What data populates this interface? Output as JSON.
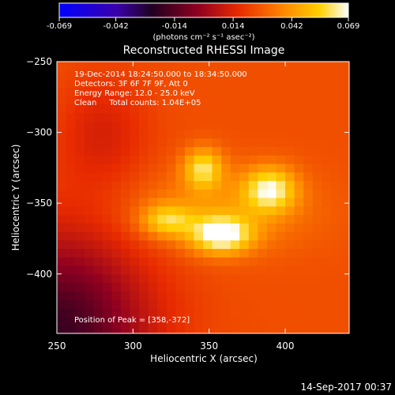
{
  "chart_data": {
    "type": "heatmap",
    "title": "Reconstructed RHESSI Image",
    "xlabel": "Heliocentric X (arcsec)",
    "ylabel": "Heliocentric Y (arcsec)",
    "xlim": [
      250,
      442
    ],
    "ylim": [
      -442,
      -250
    ],
    "x_ticks": [
      250,
      300,
      350,
      400
    ],
    "y_ticks": [
      -250,
      -300,
      -350,
      -400
    ],
    "colorbar": {
      "label": "(photons cm⁻² s⁻¹ asec⁻²)",
      "min": -0.069,
      "max": 0.069,
      "tick_labels": [
        "-0.069",
        "-0.042",
        "-0.014",
        "0.014",
        "0.042",
        "0.069"
      ],
      "ticks": [
        -0.069,
        -0.042,
        -0.014,
        0.014,
        0.042,
        0.069
      ]
    },
    "annotations": [
      "19-Dec-2014 18:24:50.000 to 18:34:50.000",
      "Detectors: 3F 6F 7F 9F, Att 0",
      "Energy Range: 12.0 - 25.0 keV",
      "Clean     Total counts: 1.04E+05"
    ],
    "peak_label": "Position of Peak = [358,-372]",
    "sources": [
      {
        "x": 358,
        "y": -372,
        "value": 0.069,
        "sx": 14,
        "sy": 9
      },
      {
        "x": 390,
        "y": -340,
        "value": 0.062,
        "sx": 12,
        "sy": 11
      },
      {
        "x": 346,
        "y": -325,
        "value": 0.058,
        "sx": 9,
        "sy": 10
      },
      {
        "x": 322,
        "y": -362,
        "value": 0.052,
        "sx": 12,
        "sy": 8
      }
    ],
    "background_value": 0.025
  },
  "footer": {
    "timestamp": "14-Sep-2017 00:37"
  }
}
